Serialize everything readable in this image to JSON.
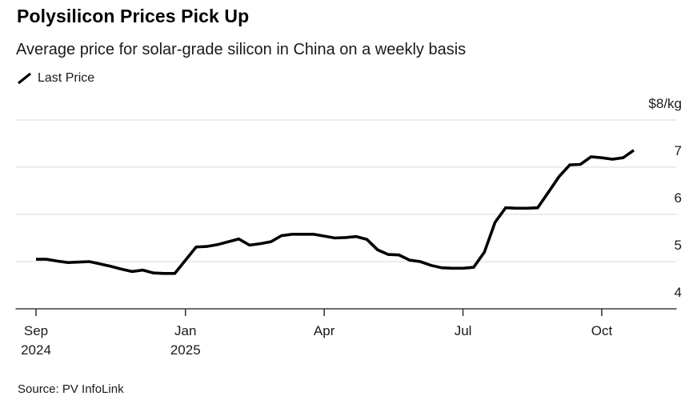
{
  "header": {
    "title": "Polysilicon Prices Pick Up",
    "subtitle": "Average price for solar-grade silicon in China on a weekly basis"
  },
  "legend": {
    "label": "Last Price"
  },
  "footer": {
    "source": "Source: PV InfoLink"
  },
  "colors": {
    "line": "#000000",
    "grid": "#d9d9d9",
    "axis": "#3b3b3b",
    "text": "#1a1a1a"
  },
  "chart_data": {
    "type": "line",
    "title": "Polysilicon Prices Pick Up",
    "subtitle": "Average price for solar-grade silicon in China on a weekly basis",
    "unit_label": "$8/kg",
    "xlabel": "",
    "ylabel": "$/kg",
    "ylim": [
      4,
      8.4
    ],
    "grid": "horizontal",
    "legend_position": "top-left",
    "x_description": "Weekly data points from late Sep 2024 to late Oct 2025",
    "y_ticks": [
      {
        "value": 8,
        "label": "$8/kg"
      },
      {
        "value": 7,
        "label": "7"
      },
      {
        "value": 6,
        "label": "6"
      },
      {
        "value": 5,
        "label": "5"
      },
      {
        "value": 4,
        "label": "4"
      }
    ],
    "x_ticks": [
      {
        "index": 0,
        "label": "Sep",
        "sublabel": "2024"
      },
      {
        "index": 14,
        "label": "Jan",
        "sublabel": "2025"
      },
      {
        "index": 27,
        "label": "Apr",
        "sublabel": ""
      },
      {
        "index": 40,
        "label": "Jul",
        "sublabel": ""
      },
      {
        "index": 53,
        "label": "Oct",
        "sublabel": ""
      }
    ],
    "series": [
      {
        "name": "Last Price",
        "color": "#000000",
        "values": [
          5.05,
          5.05,
          5.01,
          4.98,
          4.99,
          5.0,
          4.95,
          4.9,
          4.84,
          4.79,
          4.82,
          4.76,
          4.75,
          4.75,
          5.03,
          5.31,
          5.32,
          5.36,
          5.42,
          5.48,
          5.35,
          5.38,
          5.42,
          5.55,
          5.58,
          5.58,
          5.58,
          5.54,
          5.5,
          5.51,
          5.53,
          5.47,
          5.25,
          5.15,
          5.14,
          5.03,
          5.0,
          4.92,
          4.87,
          4.86,
          4.86,
          4.88,
          5.2,
          5.83,
          6.14,
          6.13,
          6.13,
          6.14,
          6.47,
          6.8,
          7.05,
          7.06,
          7.22,
          7.2,
          7.17,
          7.2,
          7.36
        ]
      }
    ]
  }
}
